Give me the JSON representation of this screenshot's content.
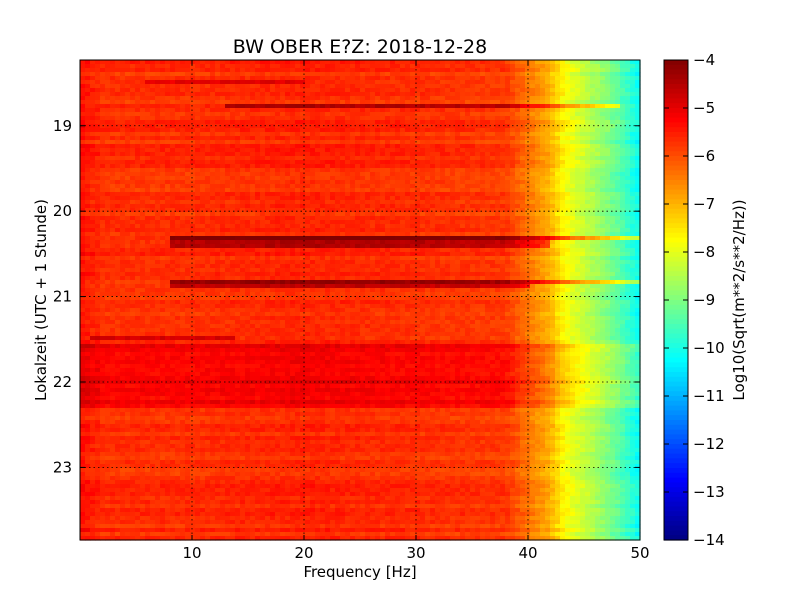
{
  "chart_data": {
    "type": "heatmap",
    "title": "BW OBER E?Z: 2018-12-28",
    "xlabel": "Frequency [Hz]",
    "ylabel": "Lokalzeit (UTC + 1 Stunde)",
    "colorbar_label": "Log10(Sqrt(m**2/s**2/Hz))",
    "colormap": "jet",
    "xlim": [
      0,
      50
    ],
    "ylim": [
      18.23,
      23.85
    ],
    "y_inverted": true,
    "clim": [
      -14,
      -4
    ],
    "grid": true,
    "x_ticks": [
      10,
      20,
      30,
      40,
      50
    ],
    "y_ticks": [
      19,
      20,
      21,
      22,
      23
    ],
    "colorbar_ticks": [
      -4,
      -5,
      -6,
      -7,
      -8,
      -9,
      -10,
      -11,
      -12,
      -13,
      -14
    ],
    "freq_profile": {
      "x": [
        0,
        1,
        2,
        5,
        10,
        20,
        30,
        38,
        40,
        42,
        43,
        44,
        46,
        48,
        50
      ],
      "y": [
        -5.4,
        -5.6,
        -5.7,
        -5.7,
        -5.7,
        -5.6,
        -5.7,
        -5.8,
        -6.4,
        -7.0,
        -7.6,
        -8.0,
        -8.6,
        -9.3,
        -10.2
      ]
    },
    "bands": [
      {
        "time": [
          18.24,
          18.27
        ],
        "freq": [
          0,
          38
        ],
        "delta": 0.3
      },
      {
        "time": [
          18.48,
          18.52
        ],
        "freq": [
          6,
          20
        ],
        "delta": 0.7
      },
      {
        "time": [
          18.76,
          18.8
        ],
        "freq": [
          13,
          48
        ],
        "delta": 1.1
      },
      {
        "time": [
          20.28,
          20.34
        ],
        "freq": [
          8,
          50
        ],
        "delta": 1.7
      },
      {
        "time": [
          20.34,
          20.41
        ],
        "freq": [
          8,
          42
        ],
        "delta": 1.2
      },
      {
        "time": [
          20.8,
          20.84
        ],
        "freq": [
          8,
          50
        ],
        "delta": 1.6
      },
      {
        "time": [
          20.84,
          20.9
        ],
        "freq": [
          8,
          40
        ],
        "delta": 1.1
      },
      {
        "time": [
          21.48,
          21.51
        ],
        "freq": [
          1,
          14
        ],
        "delta": 0.9
      },
      {
        "time": [
          21.55,
          22.3
        ],
        "freq": [
          0,
          50
        ],
        "delta": 0.5
      }
    ]
  }
}
